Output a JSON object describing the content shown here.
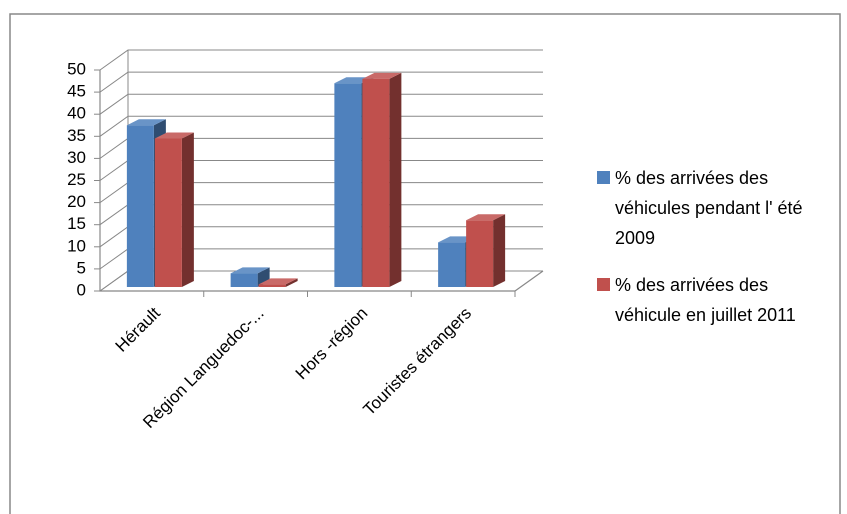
{
  "chart_data": {
    "type": "bar3d",
    "categories": [
      "Hérault",
      "Région Languedoc-...",
      "Hors -région",
      "Touristes étrangers"
    ],
    "series": [
      {
        "name": "% des arrivées des véhicules pendant l' été 2009",
        "color": "#4f81bd",
        "values": [
          37.5,
          4,
          47,
          11
        ]
      },
      {
        "name": "% des arrivées des véhicule en juillet 2011",
        "color": "#c0504d",
        "values": [
          34.5,
          1.5,
          48,
          16
        ]
      }
    ],
    "ylim": [
      0,
      50
    ],
    "yticks": [
      0,
      5,
      10,
      15,
      20,
      25,
      30,
      35,
      40,
      45,
      50
    ],
    "grid": true,
    "legend": "right"
  }
}
